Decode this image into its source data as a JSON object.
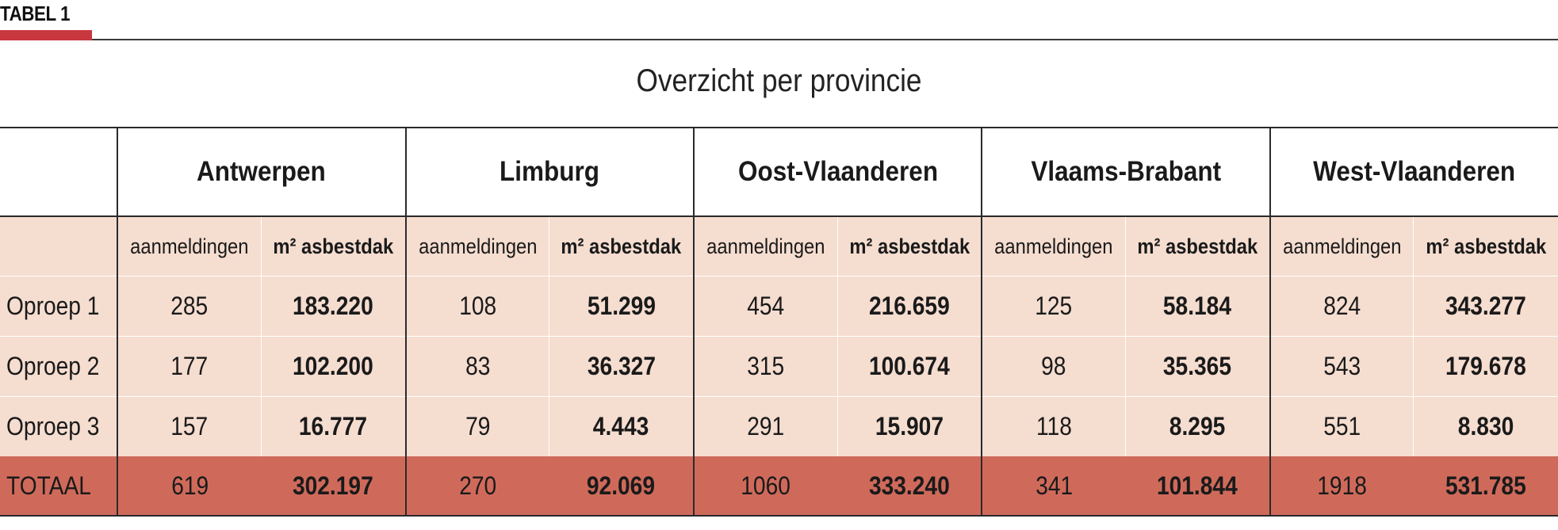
{
  "label": "TABEL 1",
  "title": "Overzicht per provincie",
  "columns": {
    "count_label": "aanmeldingen",
    "area_label": "m² asbestdak"
  },
  "provinces": [
    "Antwerpen",
    "Limburg",
    "Oost-Vlaanderen",
    "Vlaams-Brabant",
    "West-Vlaanderen"
  ],
  "rows": [
    {
      "label": "Oproep 1",
      "cells": [
        "285",
        "183.220",
        "108",
        "51.299",
        "454",
        "216.659",
        "125",
        "58.184",
        "824",
        "343.277"
      ]
    },
    {
      "label": "Oproep 2",
      "cells": [
        "177",
        "102.200",
        "83",
        "36.327",
        "315",
        "100.674",
        "98",
        "35.365",
        "543",
        "179.678"
      ]
    },
    {
      "label": "Oproep 3",
      "cells": [
        "157",
        "16.777",
        "79",
        "4.443",
        "291",
        "15.907",
        "118",
        "8.295",
        "551",
        "8.830"
      ]
    }
  ],
  "total": {
    "label": "TOTAAL",
    "cells": [
      "619",
      "302.197",
      "270",
      "92.069",
      "1060",
      "333.240",
      "341",
      "101.844",
      "1918",
      "531.785"
    ]
  },
  "colors": {
    "accent": "#c8373e",
    "row_fill": "#f5ddd0",
    "total_fill": "#cf6a5b"
  }
}
